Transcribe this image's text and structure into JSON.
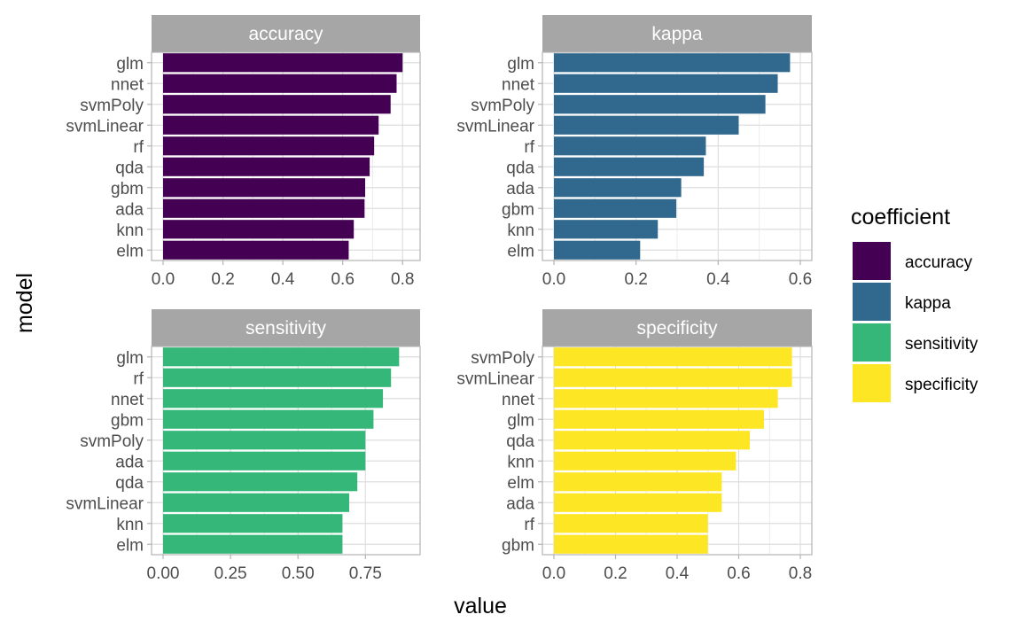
{
  "chart_data": {
    "type": "bar",
    "orientation": "horizontal",
    "facet_layout": "2x2",
    "xlabel": "value",
    "ylabel": "model",
    "grid": true,
    "legend": {
      "title": "coefficient",
      "position": "right",
      "entries": [
        {
          "label": "accuracy",
          "color": "#440154"
        },
        {
          "label": "kappa",
          "color": "#31688e"
        },
        {
          "label": "sensitivity",
          "color": "#35b779"
        },
        {
          "label": "specificity",
          "color": "#fde725"
        }
      ]
    },
    "panels": [
      {
        "name": "accuracy",
        "color": "#440154",
        "xlim": [
          0,
          0.82
        ],
        "xticks": [
          0,
          0.2,
          0.4,
          0.6,
          0.8
        ],
        "xtick_labels": [
          "0.0",
          "0.2",
          "0.4",
          "0.6",
          "0.8"
        ],
        "categories": [
          "glm",
          "nnet",
          "svmPoly",
          "svmLinear",
          "rf",
          "qda",
          "gbm",
          "ada",
          "knn",
          "elm"
        ],
        "values": [
          0.8,
          0.78,
          0.76,
          0.72,
          0.705,
          0.69,
          0.675,
          0.673,
          0.637,
          0.62
        ]
      },
      {
        "name": "kappa",
        "color": "#31688e",
        "xlim": [
          0,
          0.6
        ],
        "xticks": [
          0,
          0.2,
          0.4,
          0.6
        ],
        "xtick_labels": [
          "0.0",
          "0.2",
          "0.4",
          "0.6"
        ],
        "categories": [
          "glm",
          "nnet",
          "svmPoly",
          "svmLinear",
          "rf",
          "qda",
          "ada",
          "gbm",
          "knn",
          "elm"
        ],
        "values": [
          0.575,
          0.545,
          0.515,
          0.45,
          0.37,
          0.365,
          0.31,
          0.298,
          0.253,
          0.21
        ]
      },
      {
        "name": "sensitivity",
        "color": "#35b779",
        "xlim": [
          0,
          0.91
        ],
        "xticks": [
          0,
          0.25,
          0.5,
          0.75
        ],
        "xtick_labels": [
          "0.00",
          "0.25",
          "0.50",
          "0.75"
        ],
        "categories": [
          "glm",
          "rf",
          "nnet",
          "gbm",
          "svmPoly",
          "ada",
          "qda",
          "svmLinear",
          "knn",
          "elm"
        ],
        "values": [
          0.875,
          0.845,
          0.815,
          0.78,
          0.75,
          0.75,
          0.72,
          0.69,
          0.665,
          0.665
        ]
      },
      {
        "name": "specificity",
        "color": "#fde725",
        "xlim": [
          0,
          0.8
        ],
        "xticks": [
          0,
          0.2,
          0.4,
          0.6,
          0.8
        ],
        "xtick_labels": [
          "0.0",
          "0.2",
          "0.4",
          "0.6",
          "0.8"
        ],
        "categories": [
          "svmPoly",
          "svmLinear",
          "nnet",
          "glm",
          "qda",
          "knn",
          "elm",
          "ada",
          "rf",
          "gbm"
        ],
        "values": [
          0.773,
          0.773,
          0.727,
          0.682,
          0.636,
          0.591,
          0.545,
          0.545,
          0.5,
          0.5
        ]
      }
    ]
  }
}
